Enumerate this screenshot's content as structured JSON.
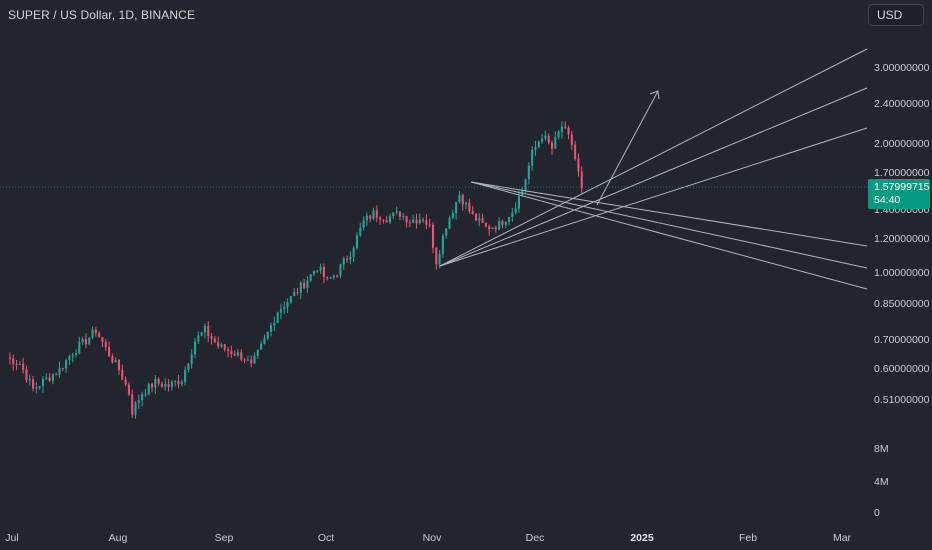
{
  "header": {
    "title": "SUPER / US Dollar, 1D, BINANCE",
    "currency_label": "USD"
  },
  "price_axis": {
    "labels": [
      "3.00000000",
      "2.40000000",
      "2.00000000",
      "1.70000000",
      "1.40000000",
      "1.20000000",
      "1.00000000",
      "0.85000000",
      "0.70000000",
      "0.60000000",
      "0.51000000"
    ],
    "volume_labels": [
      "8M",
      "4M",
      "0"
    ]
  },
  "current_price": {
    "price": "1.57999715",
    "countdown": "54:40"
  },
  "time_axis": {
    "labels": [
      "Jul",
      "Aug",
      "Sep",
      "Oct",
      "Nov",
      "Dec",
      "2025",
      "Feb",
      "Mar"
    ]
  },
  "colors": {
    "background": "#23252e",
    "up": "#26a69a",
    "down": "#ef5373",
    "drawing": "#b2b5be",
    "price_tag": "#089981"
  },
  "chart_data": {
    "type": "candlestick",
    "title": "SUPER / US Dollar, 1D, BINANCE",
    "y_scale": "log",
    "ylim": [
      0.45,
      3.3
    ],
    "x_range": [
      "2024-06-26",
      "2025-03-15"
    ],
    "y_ticks": [
      3.0,
      2.4,
      2.0,
      1.7,
      1.4,
      1.2,
      1.0,
      0.85,
      0.7,
      0.6,
      0.51
    ],
    "close_series": [
      {
        "date": "2024-06-28",
        "close": 0.64
      },
      {
        "date": "2024-07-02",
        "close": 0.62
      },
      {
        "date": "2024-07-06",
        "close": 0.54
      },
      {
        "date": "2024-07-10",
        "close": 0.57
      },
      {
        "date": "2024-07-14",
        "close": 0.6
      },
      {
        "date": "2024-07-18",
        "close": 0.66
      },
      {
        "date": "2024-07-22",
        "close": 0.7
      },
      {
        "date": "2024-07-25",
        "close": 0.74
      },
      {
        "date": "2024-07-28",
        "close": 0.67
      },
      {
        "date": "2024-08-01",
        "close": 0.6
      },
      {
        "date": "2024-08-04",
        "close": 0.53
      },
      {
        "date": "2024-08-05",
        "close": 0.48
      },
      {
        "date": "2024-08-08",
        "close": 0.53
      },
      {
        "date": "2024-08-12",
        "close": 0.56
      },
      {
        "date": "2024-08-16",
        "close": 0.55
      },
      {
        "date": "2024-08-20",
        "close": 0.57
      },
      {
        "date": "2024-08-24",
        "close": 0.7
      },
      {
        "date": "2024-08-27",
        "close": 0.74
      },
      {
        "date": "2024-08-31",
        "close": 0.68
      },
      {
        "date": "2024-09-04",
        "close": 0.66
      },
      {
        "date": "2024-09-08",
        "close": 0.64
      },
      {
        "date": "2024-09-10",
        "close": 0.61
      },
      {
        "date": "2024-09-14",
        "close": 0.7
      },
      {
        "date": "2024-09-18",
        "close": 0.82
      },
      {
        "date": "2024-09-22",
        "close": 0.88
      },
      {
        "date": "2024-09-26",
        "close": 0.95
      },
      {
        "date": "2024-09-30",
        "close": 1.04
      },
      {
        "date": "2024-10-03",
        "close": 0.96
      },
      {
        "date": "2024-10-06",
        "close": 1.01
      },
      {
        "date": "2024-10-10",
        "close": 1.12
      },
      {
        "date": "2024-10-14",
        "close": 1.32
      },
      {
        "date": "2024-10-17",
        "close": 1.38
      },
      {
        "date": "2024-10-21",
        "close": 1.35
      },
      {
        "date": "2024-10-25",
        "close": 1.38
      },
      {
        "date": "2024-10-28",
        "close": 1.33
      },
      {
        "date": "2024-11-01",
        "close": 1.35
      },
      {
        "date": "2024-11-03",
        "close": 1.28
      },
      {
        "date": "2024-11-05",
        "close": 1.07
      },
      {
        "date": "2024-11-08",
        "close": 1.3
      },
      {
        "date": "2024-11-12",
        "close": 1.53
      },
      {
        "date": "2024-11-16",
        "close": 1.36
      },
      {
        "date": "2024-11-20",
        "close": 1.28
      },
      {
        "date": "2024-11-24",
        "close": 1.3
      },
      {
        "date": "2024-11-28",
        "close": 1.4
      },
      {
        "date": "2024-12-01",
        "close": 1.56
      },
      {
        "date": "2024-12-04",
        "close": 1.9
      },
      {
        "date": "2024-12-07",
        "close": 2.1
      },
      {
        "date": "2024-12-10",
        "close": 1.95
      },
      {
        "date": "2024-12-13",
        "close": 2.2
      },
      {
        "date": "2024-12-16",
        "close": 2.0
      },
      {
        "date": "2024-12-19",
        "close": 1.58
      }
    ]
  }
}
